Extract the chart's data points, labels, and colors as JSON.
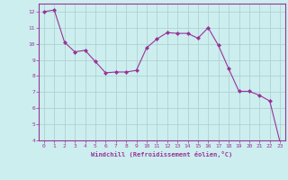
{
  "x": [
    0,
    1,
    2,
    3,
    4,
    5,
    6,
    7,
    8,
    9,
    10,
    11,
    12,
    13,
    14,
    15,
    16,
    17,
    18,
    19,
    20,
    21,
    22,
    23
  ],
  "y": [
    12.0,
    12.1,
    10.1,
    9.5,
    9.6,
    8.9,
    8.2,
    8.25,
    8.25,
    8.35,
    9.75,
    10.3,
    10.7,
    10.65,
    10.65,
    10.35,
    11.0,
    9.9,
    8.45,
    7.05,
    7.05,
    6.8,
    6.45,
    3.9
  ],
  "line_color": "#993399",
  "marker": "D",
  "marker_size": 2.0,
  "bg_color": "#cceeee",
  "grid_color": "#aacccc",
  "xlabel": "Windchill (Refroidissement éolien,°C)",
  "xlabel_color": "#993399",
  "tick_color": "#993399",
  "ylim": [
    4,
    12.5
  ],
  "xlim": [
    -0.5,
    23.5
  ],
  "yticks": [
    4,
    5,
    6,
    7,
    8,
    9,
    10,
    11,
    12
  ],
  "xticks": [
    0,
    1,
    2,
    3,
    4,
    5,
    6,
    7,
    8,
    9,
    10,
    11,
    12,
    13,
    14,
    15,
    16,
    17,
    18,
    19,
    20,
    21,
    22,
    23
  ],
  "spine_color": "#993399"
}
